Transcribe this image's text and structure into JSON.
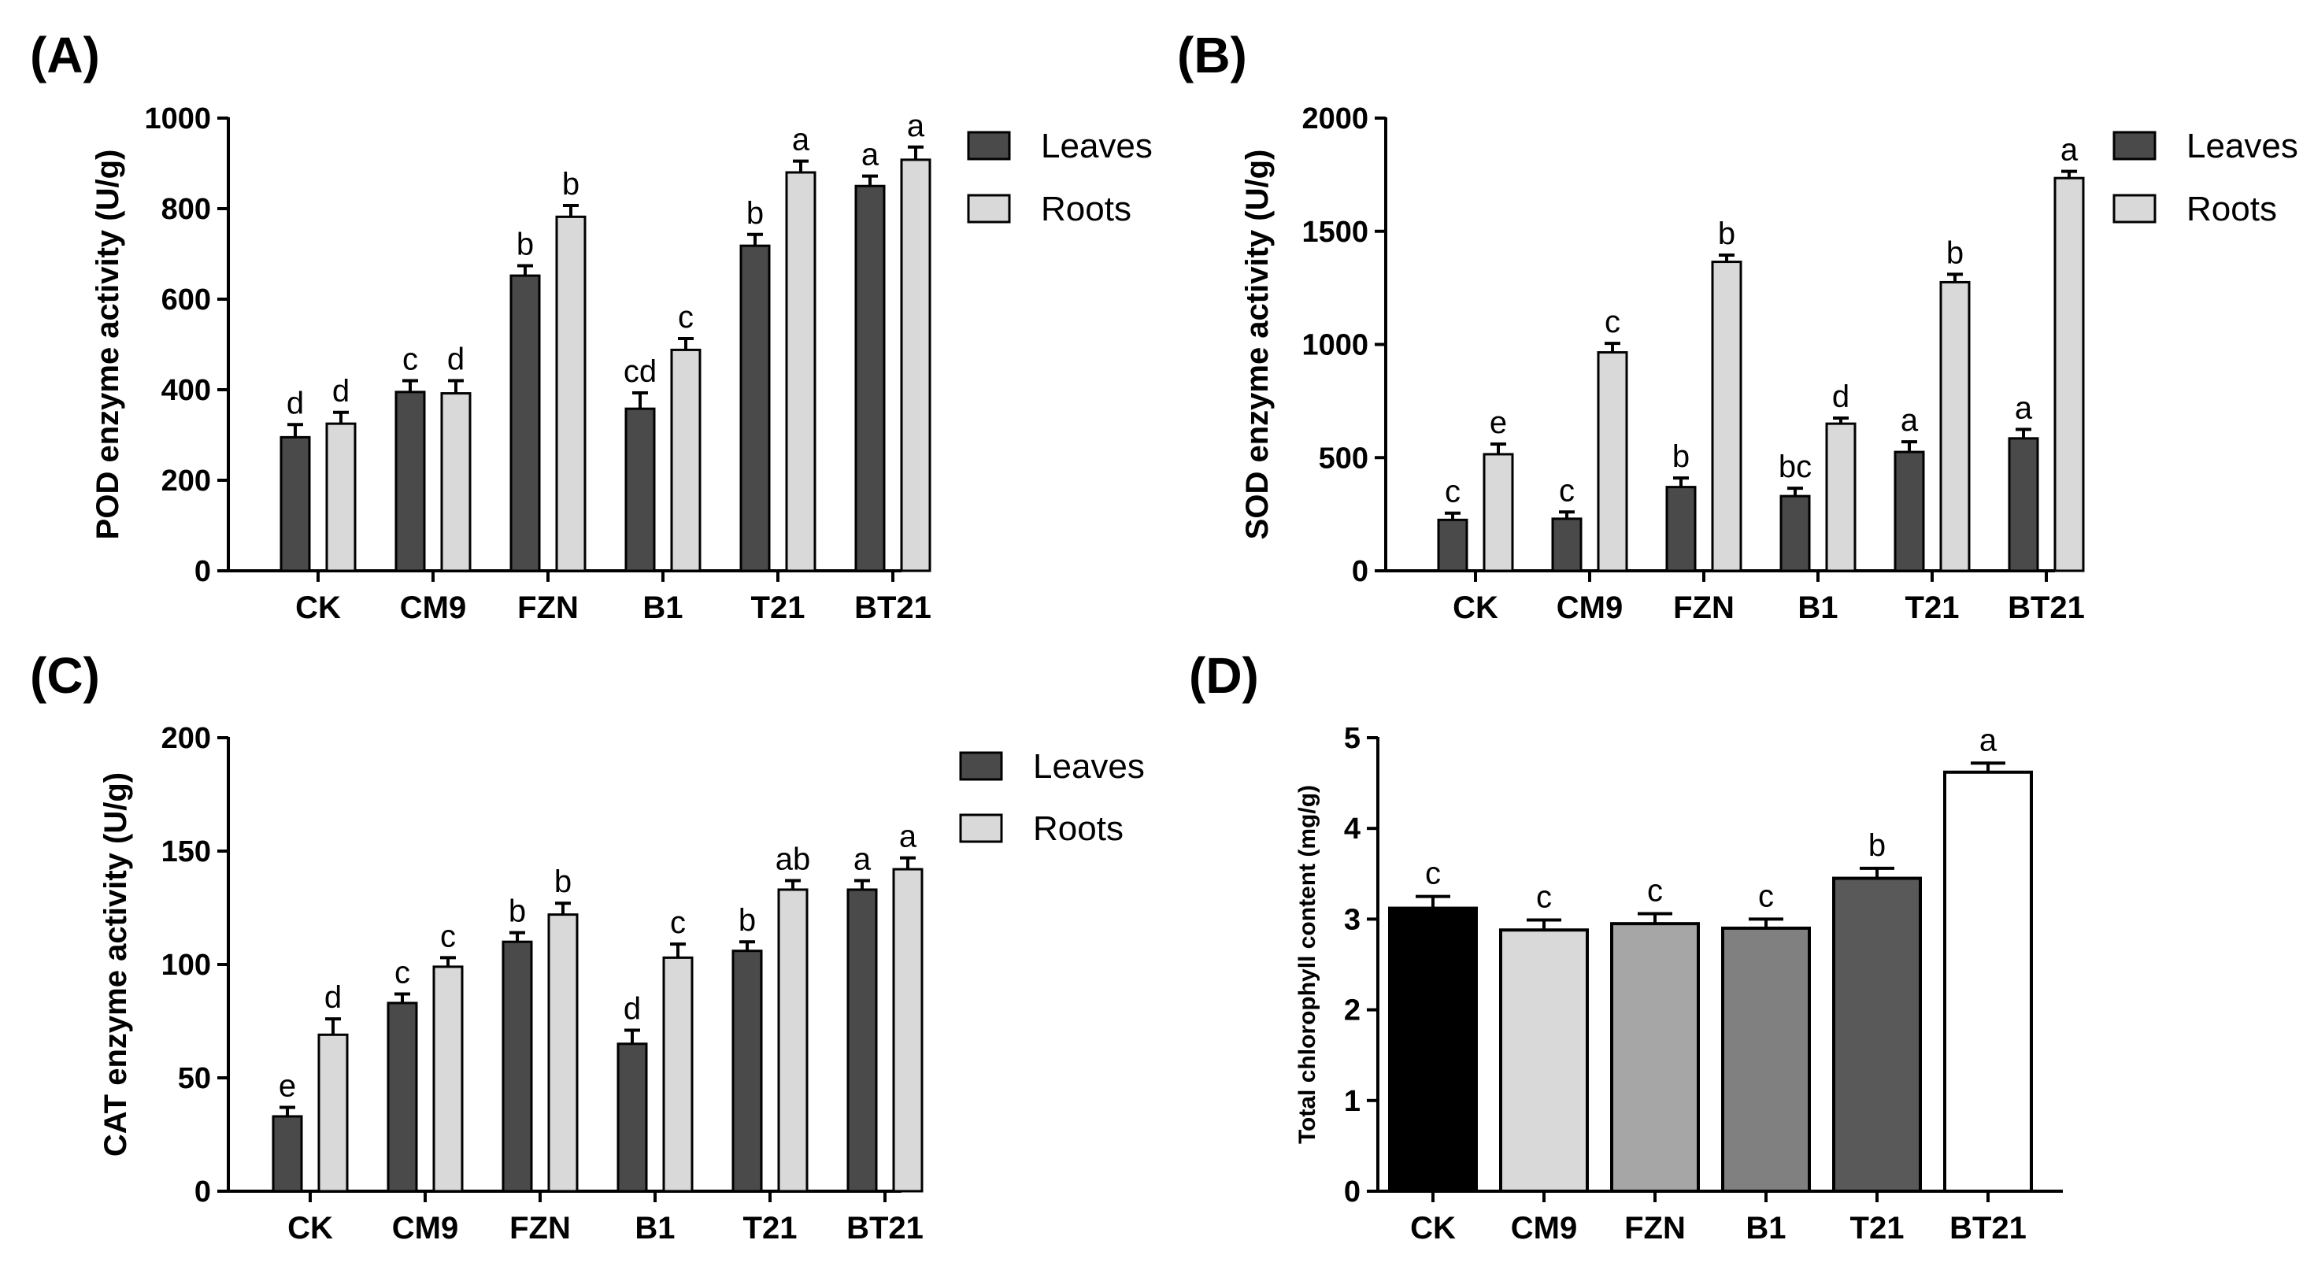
{
  "colors": {
    "leaves": "#4a4a4a",
    "roots": "#d9d9d9",
    "axis": "#000000"
  },
  "chart_data": [
    {
      "panel": "(A)",
      "type": "bar",
      "ylabel": "POD enzyme activity (U/g)",
      "ylim": [
        0,
        1000
      ],
      "yticks": [
        0,
        200,
        400,
        600,
        800,
        1000
      ],
      "categories": [
        "CK",
        "CM9",
        "FZN",
        "B1",
        "T21",
        "BT21"
      ],
      "legend": "right",
      "series": [
        {
          "name": "Leaves",
          "values": [
            295,
            395,
            652,
            358,
            718,
            850
          ],
          "errors": [
            28,
            25,
            22,
            35,
            25,
            22
          ],
          "sig": [
            "d",
            "c",
            "b",
            "cd",
            "b",
            "a"
          ]
        },
        {
          "name": "Roots",
          "values": [
            325,
            392,
            782,
            488,
            880,
            908
          ],
          "errors": [
            25,
            28,
            25,
            25,
            25,
            28
          ],
          "sig": [
            "d",
            "d",
            "b",
            "c",
            "a",
            "a"
          ]
        }
      ]
    },
    {
      "panel": "(B)",
      "type": "bar",
      "ylabel": "SOD enzyme activity (U/g)",
      "ylim": [
        0,
        2000
      ],
      "yticks": [
        0,
        500,
        1000,
        1500,
        2000
      ],
      "categories": [
        "CK",
        "CM9",
        "FZN",
        "B1",
        "T21",
        "BT21"
      ],
      "legend": "right",
      "series": [
        {
          "name": "Leaves",
          "values": [
            225,
            230,
            370,
            330,
            525,
            585
          ],
          "errors": [
            30,
            30,
            40,
            35,
            45,
            40
          ],
          "sig": [
            "c",
            "c",
            "b",
            "bc",
            "a",
            "a"
          ]
        },
        {
          "name": "Roots",
          "values": [
            515,
            965,
            1365,
            650,
            1275,
            1735
          ],
          "errors": [
            45,
            40,
            30,
            25,
            35,
            30
          ],
          "sig": [
            "e",
            "c",
            "b",
            "d",
            "b",
            "a"
          ]
        }
      ]
    },
    {
      "panel": "(C)",
      "type": "bar",
      "ylabel": "CAT enzyme activity (U/g)",
      "ylim": [
        0,
        200
      ],
      "yticks": [
        0,
        50,
        100,
        150,
        200
      ],
      "categories": [
        "CK",
        "CM9",
        "FZN",
        "B1",
        "T21",
        "BT21"
      ],
      "legend": "right",
      "series": [
        {
          "name": "Leaves",
          "values": [
            33,
            83,
            110,
            65,
            106,
            133
          ],
          "errors": [
            4,
            4,
            4,
            6,
            4,
            4
          ],
          "sig": [
            "e",
            "c",
            "b",
            "d",
            "b",
            "a"
          ]
        },
        {
          "name": "Roots",
          "values": [
            69,
            99,
            122,
            103,
            133,
            142
          ],
          "errors": [
            7,
            4,
            5,
            6,
            4,
            5
          ],
          "sig": [
            "d",
            "c",
            "b",
            "c",
            "ab",
            "a"
          ]
        }
      ]
    },
    {
      "panel": "(D)",
      "type": "bar",
      "ylabel": "Total chlorophyll content (mg/g)",
      "ylim": [
        0,
        5
      ],
      "yticks": [
        0,
        1,
        2,
        3,
        4,
        5
      ],
      "categories": [
        "CK",
        "CM9",
        "FZN",
        "B1",
        "T21",
        "BT21"
      ],
      "values": [
        3.12,
        2.88,
        2.95,
        2.9,
        3.45,
        4.62
      ],
      "errors": [
        0.13,
        0.11,
        0.11,
        0.1,
        0.11,
        0.1
      ],
      "sig": [
        "c",
        "c",
        "c",
        "c",
        "b",
        "a"
      ],
      "bar_colors": [
        "#000000",
        "#d9d9d9",
        "#a6a6a6",
        "#808080",
        "#595959",
        "#ffffff"
      ]
    }
  ]
}
